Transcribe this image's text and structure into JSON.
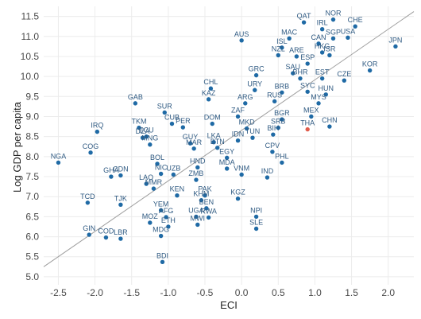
{
  "chart_data": {
    "type": "scatter",
    "title": "",
    "xlabel": "ECI",
    "ylabel": "Log GDP per capita",
    "xlim": [
      -2.7,
      2.35
    ],
    "ylim": [
      4.8,
      11.75
    ],
    "xticks": [
      -2.5,
      -2.0,
      -1.5,
      -1.0,
      -0.5,
      0.0,
      0.5,
      1.0,
      1.5,
      2.0
    ],
    "yticks": [
      5.0,
      5.5,
      6.0,
      6.5,
      7.0,
      7.5,
      8.0,
      8.5,
      9.0,
      9.5,
      10.0,
      10.5,
      11.0,
      11.5
    ],
    "xtick_labels": [
      "-2.5",
      "-2.0",
      "-1.5",
      "-1.0",
      "-0.5",
      "0.0",
      "0.5",
      "1.0",
      "1.5",
      "2.0"
    ],
    "ytick_labels": [
      "5.0",
      "5.5",
      "6.0",
      "6.5",
      "7.0",
      "7.5",
      "8.0",
      "8.5",
      "9.0",
      "9.5",
      "10.0",
      "10.5",
      "11.0",
      "11.5"
    ],
    "grid": true,
    "point_color": "#1f6aa5",
    "highlight_color": "#e05c4b",
    "line_color": "#9e9e9e",
    "fit_line": {
      "x": [
        -2.7,
        2.35
      ],
      "y": [
        5.25,
        11.62
      ]
    },
    "points": [
      {
        "label": "NGA",
        "x": -2.5,
        "y": 7.85
      },
      {
        "label": "COG",
        "x": -2.06,
        "y": 8.1
      },
      {
        "label": "IRQ",
        "x": -1.97,
        "y": 8.62
      },
      {
        "label": "GHA",
        "x": -1.78,
        "y": 7.5
      },
      {
        "label": "CDN",
        "x": -1.65,
        "y": 7.53
      },
      {
        "label": "TCD",
        "x": -2.1,
        "y": 6.85
      },
      {
        "label": "TJK",
        "x": -1.65,
        "y": 6.8
      },
      {
        "label": "GIN",
        "x": -2.08,
        "y": 6.05
      },
      {
        "label": "COD",
        "x": -1.85,
        "y": 5.98
      },
      {
        "label": "LBR",
        "x": -1.65,
        "y": 5.95
      },
      {
        "label": "GAB",
        "x": -1.45,
        "y": 9.33
      },
      {
        "label": "TKM",
        "x": -1.4,
        "y": 8.72
      },
      {
        "label": "ECU",
        "x": -1.3,
        "y": 8.5
      },
      {
        "label": "DZA",
        "x": -1.35,
        "y": 8.47
      },
      {
        "label": "MNG",
        "x": -1.25,
        "y": 8.3
      },
      {
        "label": "SUR",
        "x": -1.05,
        "y": 9.1
      },
      {
        "label": "CUB",
        "x": -0.95,
        "y": 8.82
      },
      {
        "label": "PER",
        "x": -0.8,
        "y": 8.73
      },
      {
        "label": "BOL",
        "x": -1.15,
        "y": 7.82
      },
      {
        "label": "NIC",
        "x": -1.1,
        "y": 7.57
      },
      {
        "label": "UZB",
        "x": -0.93,
        "y": 7.55
      },
      {
        "label": "LAO",
        "x": -1.3,
        "y": 7.32
      },
      {
        "label": "MMR",
        "x": -1.2,
        "y": 7.2
      },
      {
        "label": "KEN",
        "x": -0.88,
        "y": 7.03
      },
      {
        "label": "YEM",
        "x": -1.1,
        "y": 6.66
      },
      {
        "label": "AFG",
        "x": -1.03,
        "y": 6.49
      },
      {
        "label": "MOZ",
        "x": -1.25,
        "y": 6.35
      },
      {
        "label": "ETH",
        "x": -1.0,
        "y": 6.25
      },
      {
        "label": "MDG",
        "x": -1.1,
        "y": 6.02
      },
      {
        "label": "BDI",
        "x": -1.08,
        "y": 5.37
      },
      {
        "label": "GUY",
        "x": -0.7,
        "y": 8.33
      },
      {
        "label": "MAR",
        "x": -0.65,
        "y": 8.2
      },
      {
        "label": "HND",
        "x": -0.6,
        "y": 7.73
      },
      {
        "label": "ZMB",
        "x": -0.62,
        "y": 7.42
      },
      {
        "label": "PAK",
        "x": -0.5,
        "y": 7.03
      },
      {
        "label": "KHM",
        "x": -0.55,
        "y": 6.91
      },
      {
        "label": "BEN",
        "x": -0.48,
        "y": 6.71
      },
      {
        "label": "UGA",
        "x": -0.62,
        "y": 6.5
      },
      {
        "label": "RWA",
        "x": -0.45,
        "y": 6.48
      },
      {
        "label": "MWI",
        "x": -0.6,
        "y": 6.3
      },
      {
        "label": "KAZ",
        "x": -0.45,
        "y": 9.43
      },
      {
        "label": "CHL",
        "x": -0.42,
        "y": 9.7
      },
      {
        "label": "DOM",
        "x": -0.4,
        "y": 8.82
      },
      {
        "label": "LKA",
        "x": -0.38,
        "y": 8.36
      },
      {
        "label": "BTN",
        "x": -0.33,
        "y": 8.22
      },
      {
        "label": "EGY",
        "x": -0.2,
        "y": 7.97
      },
      {
        "label": "MDA",
        "x": -0.2,
        "y": 7.7
      },
      {
        "label": "VNM",
        "x": 0.0,
        "y": 7.55
      },
      {
        "label": "KGZ",
        "x": -0.05,
        "y": 6.95
      },
      {
        "label": "AUS",
        "x": 0.0,
        "y": 10.9
      },
      {
        "label": "GRC",
        "x": 0.2,
        "y": 10.03
      },
      {
        "label": "URY",
        "x": 0.18,
        "y": 9.66
      },
      {
        "label": "ARG",
        "x": 0.05,
        "y": 9.33
      },
      {
        "label": "ZAF",
        "x": -0.05,
        "y": 9.0
      },
      {
        "label": "MKD",
        "x": 0.07,
        "y": 8.7
      },
      {
        "label": "IDN",
        "x": -0.05,
        "y": 8.4
      },
      {
        "label": "TUN",
        "x": 0.15,
        "y": 8.47
      },
      {
        "label": "NPI",
        "x": 0.2,
        "y": 6.5
      },
      {
        "label": "SLE",
        "x": 0.2,
        "y": 6.2
      },
      {
        "label": "IND",
        "x": 0.35,
        "y": 7.48
      },
      {
        "label": "PHL",
        "x": 0.55,
        "y": 7.85
      },
      {
        "label": "CPV",
        "x": 0.42,
        "y": 8.12
      },
      {
        "label": "BIH",
        "x": 0.43,
        "y": 8.55
      },
      {
        "label": "SRB",
        "x": 0.5,
        "y": 8.72
      },
      {
        "label": "BGR",
        "x": 0.55,
        "y": 8.93
      },
      {
        "label": "RUS",
        "x": 0.45,
        "y": 9.38
      },
      {
        "label": "BRB",
        "x": 0.55,
        "y": 9.6
      },
      {
        "label": "SAU",
        "x": 0.7,
        "y": 10.08
      },
      {
        "label": "BHR",
        "x": 0.8,
        "y": 9.95
      },
      {
        "label": "ARE",
        "x": 0.75,
        "y": 10.5
      },
      {
        "label": "ISL",
        "x": 0.55,
        "y": 10.72
      },
      {
        "label": "NZL",
        "x": 0.5,
        "y": 10.53
      },
      {
        "label": "MAC",
        "x": 0.65,
        "y": 10.95
      },
      {
        "label": "QAT",
        "x": 0.85,
        "y": 11.35
      },
      {
        "label": "ESP",
        "x": 0.9,
        "y": 10.32
      },
      {
        "label": "SYC",
        "x": 0.9,
        "y": 9.62
      },
      {
        "label": "MEX",
        "x": 0.95,
        "y": 9.0
      },
      {
        "label": "MYS",
        "x": 1.05,
        "y": 9.33
      },
      {
        "label": "THA",
        "x": 0.9,
        "y": 8.68
      },
      {
        "label": "EST",
        "x": 1.1,
        "y": 9.95
      },
      {
        "label": "HUN",
        "x": 1.15,
        "y": 9.55
      },
      {
        "label": "CHN",
        "x": 1.2,
        "y": 8.75
      },
      {
        "label": "CZE",
        "x": 1.4,
        "y": 9.9
      },
      {
        "label": "IRL",
        "x": 1.1,
        "y": 11.18
      },
      {
        "label": "CAN",
        "x": 1.05,
        "y": 10.82
      },
      {
        "label": "NOR",
        "x": 1.25,
        "y": 11.42
      },
      {
        "label": "CHE",
        "x": 1.55,
        "y": 11.25
      },
      {
        "label": "SGP",
        "x": 1.25,
        "y": 10.95
      },
      {
        "label": "USA",
        "x": 1.45,
        "y": 10.97
      },
      {
        "label": "HKG",
        "x": 1.1,
        "y": 10.6
      },
      {
        "label": "ISR",
        "x": 1.2,
        "y": 10.53
      },
      {
        "label": "KOR",
        "x": 1.75,
        "y": 10.15
      },
      {
        "label": "JPN",
        "x": 2.1,
        "y": 10.75
      }
    ],
    "highlight": [
      "THA"
    ]
  }
}
